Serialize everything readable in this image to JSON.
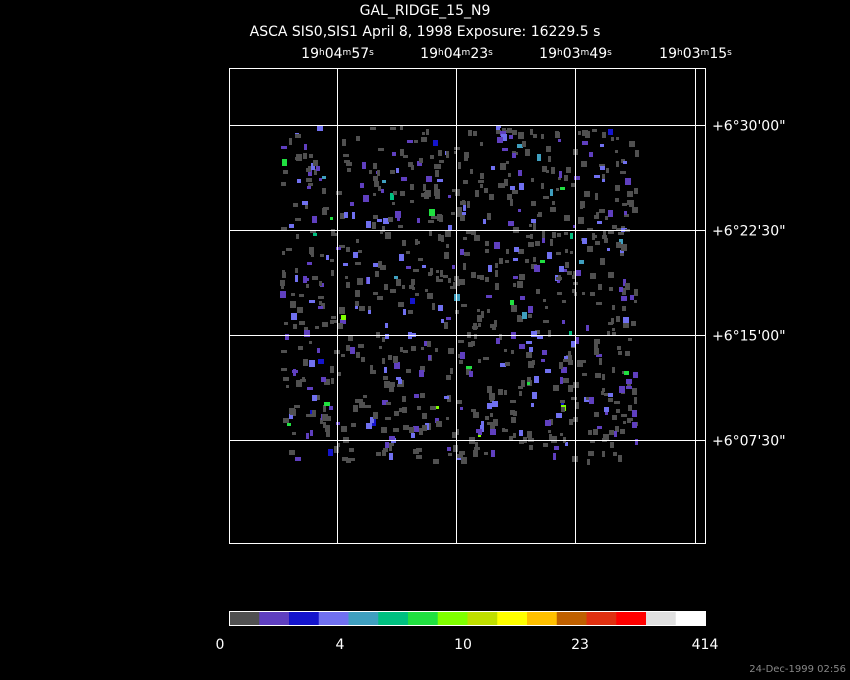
{
  "header": {
    "title": "GAL_RIDGE_15_N9",
    "subtitle": "ASCA SIS0,SIS1 April 8, 1998 Exposure: 16229.5 s"
  },
  "ra_labels": [
    [
      "19",
      "h",
      "04",
      "m",
      "57",
      "s"
    ],
    [
      "19",
      "h",
      "04",
      "m",
      "23",
      "s"
    ],
    [
      "19",
      "h",
      "03",
      "m",
      "49",
      "s"
    ],
    [
      "19",
      "h",
      "03",
      "m",
      "15",
      "s"
    ]
  ],
  "dec_labels": [
    "+6°30'00\"",
    "+6°22'30\"",
    "+6°15'00\"",
    "+6°07'30\""
  ],
  "colorbar": {
    "colors": [
      "#505050",
      "#5f3fbf",
      "#1414cc",
      "#7070f0",
      "#3f9fbf",
      "#00c080",
      "#20e040",
      "#7fff00",
      "#bfdf00",
      "#ffff00",
      "#ffc000",
      "#bf6000",
      "#e03010",
      "#ff0000",
      "#e0e0e0",
      "#ffffff"
    ],
    "labels": [
      "0",
      "4",
      "10",
      "23",
      "414"
    ]
  },
  "footer": {
    "timestamp": "24-Dec-1999 02:56"
  }
}
